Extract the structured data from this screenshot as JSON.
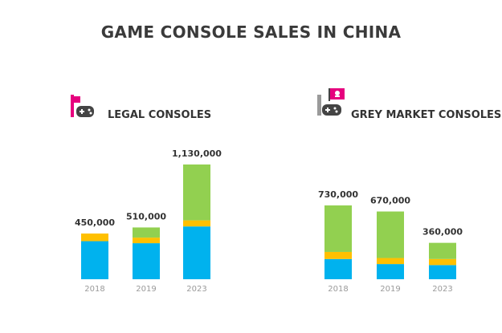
{
  "page_title": "GAME CONSOLE SALES IN CHINA",
  "colors": {
    "blue": "#00b2ee",
    "yellow": "#ffc000",
    "green": "#92d050",
    "accent": "#e6007e",
    "icon_dark": "#444444",
    "icon_grey": "#9a9a9a",
    "text_dark": "#333333",
    "tick_text": "#9a9a9a"
  },
  "chart_data": [
    {
      "type": "bar",
      "stacked": true,
      "title": "LEGAL CONSOLES",
      "icon": "gamepad-with-flag-icon",
      "categories": [
        "2018",
        "2019",
        "2023"
      ],
      "totals": [
        450000,
        510000,
        1130000
      ],
      "total_labels": [
        "450,000",
        "510,000",
        "1,130,000"
      ],
      "series": [
        {
          "color": "#00b2ee",
          "values": [
            375000,
            355000,
            520000
          ]
        },
        {
          "color": "#ffc000",
          "values": [
            75000,
            55000,
            60000
          ]
        },
        {
          "color": "#92d050",
          "values": [
            0,
            100000,
            550000
          ]
        }
      ],
      "ylim": [
        0,
        1130000
      ]
    },
    {
      "type": "bar",
      "stacked": true,
      "title": "GREY MARKET CONSOLES",
      "icon": "gamepad-with-skull-flag-icon",
      "categories": [
        "2018",
        "2019",
        "2023"
      ],
      "totals": [
        730000,
        670000,
        360000
      ],
      "total_labels": [
        "730,000",
        "670,000",
        "360,000"
      ],
      "series": [
        {
          "color": "#00b2ee",
          "values": [
            200000,
            150000,
            140000
          ]
        },
        {
          "color": "#ffc000",
          "values": [
            70000,
            60000,
            60000
          ]
        },
        {
          "color": "#92d050",
          "values": [
            460000,
            460000,
            160000
          ]
        }
      ],
      "ylim": [
        0,
        730000
      ]
    }
  ]
}
